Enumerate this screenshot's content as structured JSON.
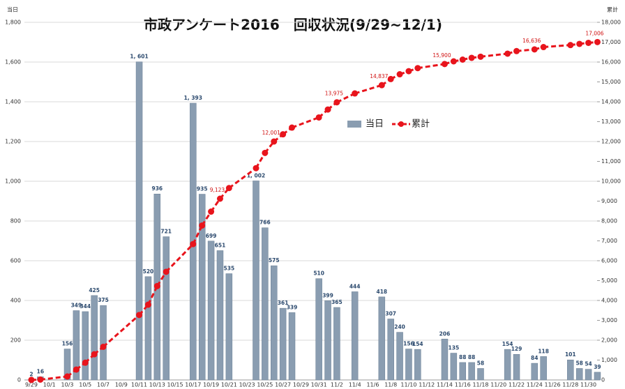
{
  "chart_data": {
    "type": "bar+line",
    "title": "市政アンケート2016　回収状況(9/29~12/1)",
    "y_label": "当日",
    "y2_label": "累計",
    "categories": [
      "9/29",
      null,
      "10/1",
      null,
      "10/3",
      null,
      "10/5",
      null,
      "10/7",
      null,
      "10/9",
      null,
      "10/11",
      null,
      "10/13",
      null,
      "10/15",
      null,
      "10/17",
      null,
      "10/19",
      null,
      "10/21",
      null,
      "10/23",
      null,
      "10/25",
      null,
      "10/27",
      null,
      "10/29",
      null,
      "10/31",
      null,
      "11/2",
      null,
      "11/4",
      null,
      "11/6",
      null,
      "11/8",
      null,
      "11/10",
      null,
      "11/12",
      null,
      "11/14",
      null,
      "11/16",
      null,
      "11/18",
      null,
      "11/20",
      null,
      "11/22",
      null,
      "11/24",
      null,
      "11/26",
      null,
      "11/28",
      null,
      "11/30",
      null
    ],
    "series": [
      {
        "name": "当日",
        "type": "bar",
        "color": "#8a9db1",
        "values": [
          2,
          16,
          null,
          null,
          156,
          349,
          344,
          425,
          375,
          null,
          null,
          null,
          1601,
          520,
          936,
          721,
          null,
          null,
          1393,
          935,
          699,
          651,
          535,
          null,
          null,
          1002,
          766,
          575,
          361,
          339,
          null,
          null,
          510,
          399,
          365,
          null,
          444,
          null,
          null,
          418,
          307,
          240,
          156,
          154,
          null,
          null,
          206,
          135,
          88,
          88,
          58,
          null,
          null,
          154,
          129,
          null,
          84,
          118,
          null,
          null,
          101,
          58,
          54,
          39
        ],
        "value_labels": [
          null,
          null,
          null,
          null,
          null,
          null,
          null,
          null,
          null,
          null,
          null,
          null,
          "1, 601",
          null,
          null,
          null,
          null,
          null,
          "1, 393",
          null,
          null,
          null,
          null,
          null,
          null,
          "1, 002",
          null,
          null,
          null,
          null,
          null,
          null,
          null,
          null,
          null,
          null,
          null,
          null,
          null,
          null,
          null,
          null,
          null,
          null,
          null,
          null,
          null,
          null,
          null,
          null,
          null,
          null,
          null,
          null,
          null,
          null,
          null,
          null,
          null,
          null,
          null,
          null,
          null,
          null
        ]
      },
      {
        "name": "累計",
        "type": "line",
        "axis": "y2",
        "color": "#e8141c",
        "values": [
          2,
          18,
          null,
          null,
          174,
          523,
          867,
          1292,
          1667,
          null,
          null,
          null,
          3268,
          3788,
          4724,
          5445,
          null,
          null,
          6838,
          7773,
          8472,
          9123,
          9658,
          null,
          null,
          10660,
          11426,
          12001,
          12362,
          12701,
          null,
          null,
          13211,
          13610,
          13975,
          null,
          14419,
          null,
          null,
          14837,
          15144,
          15384,
          15540,
          15694,
          null,
          null,
          15900,
          16035,
          16123,
          16211,
          16269,
          null,
          null,
          16423,
          16552,
          null,
          16636,
          16754,
          null,
          null,
          16855,
          16913,
          16967,
          17006
        ],
        "value_labels": [
          null,
          null,
          null,
          null,
          null,
          null,
          null,
          null,
          null,
          null,
          null,
          null,
          null,
          null,
          null,
          null,
          null,
          null,
          null,
          null,
          null,
          "9,123",
          null,
          null,
          null,
          null,
          null,
          "12,001",
          null,
          null,
          null,
          null,
          null,
          null,
          "13,975",
          null,
          null,
          null,
          null,
          "14,837",
          null,
          null,
          null,
          null,
          null,
          null,
          "15,900",
          null,
          null,
          null,
          null,
          null,
          null,
          null,
          null,
          null,
          "16,636",
          null,
          null,
          null,
          null,
          null,
          null,
          "17,006"
        ]
      }
    ],
    "ylim": [
      0,
      1800
    ],
    "yticks": [
      0,
      200,
      400,
      600,
      800,
      {
        "value": 1000,
        "label": "1,000"
      },
      {
        "value": 1200,
        "label": "1,200"
      },
      {
        "value": 1400,
        "label": "1,400"
      },
      {
        "value": 1600,
        "label": "1,600"
      },
      {
        "value": 1800,
        "label": "1,800"
      }
    ],
    "y2lim": [
      0,
      18000
    ],
    "y2ticks": [
      0,
      {
        "value": 1000,
        "label": "1,000"
      },
      {
        "value": 2000,
        "label": "2,000"
      },
      {
        "value": 3000,
        "label": "3,000"
      },
      {
        "value": 4000,
        "label": "4,000"
      },
      {
        "value": 5000,
        "label": "5,000"
      },
      {
        "value": 6000,
        "label": "6,000"
      },
      {
        "value": 7000,
        "label": "7,000"
      },
      {
        "value": 8000,
        "label": "8,000"
      },
      {
        "value": 9000,
        "label": "9,000"
      },
      {
        "value": 10000,
        "label": "10,000"
      },
      {
        "value": 11000,
        "label": "11,000"
      },
      {
        "value": 12000,
        "label": "12,000"
      },
      {
        "value": 13000,
        "label": "13,000"
      },
      {
        "value": 14000,
        "label": "14,000"
      },
      {
        "value": 15000,
        "label": "15,000"
      },
      {
        "value": 16000,
        "label": "16,000"
      },
      {
        "value": 17000,
        "label": "17,000"
      },
      {
        "value": 18000,
        "label": "18,000"
      }
    ],
    "grid": true
  }
}
